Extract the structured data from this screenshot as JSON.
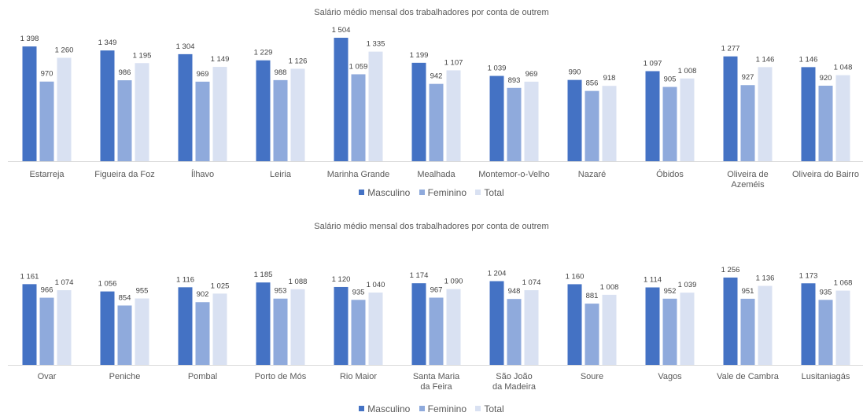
{
  "chart_data": [
    {
      "type": "bar",
      "title": "Salário médio mensal dos trabalhadores por conta de outrem",
      "categories": [
        "Estarreja",
        "Figueira da Foz",
        "Ílhavo",
        "Leiria",
        "Marinha Grande",
        "Mealhada",
        "Montemor-o-Velho",
        "Nazaré",
        "Óbidos",
        "Oliveira de Azeméis",
        "Oliveira do Bairro"
      ],
      "series": [
        {
          "name": "Masculino",
          "color": "#4472C4",
          "values": [
            1398,
            1349,
            1304,
            1229,
            1504,
            1199,
            1039,
            990,
            1097,
            1277,
            1146
          ],
          "labels": [
            "1 398",
            "1 349",
            "1 304",
            "1 229",
            "1 504",
            "1 199",
            "1 039",
            "990",
            "1 097",
            "1 277",
            "1 146"
          ]
        },
        {
          "name": "Feminino",
          "color": "#8FAADC",
          "values": [
            970,
            986,
            969,
            988,
            1059,
            942,
            893,
            856,
            905,
            927,
            920
          ],
          "labels": [
            "970",
            "986",
            "969",
            "988",
            "1 059",
            "942",
            "893",
            "856",
            "905",
            "927",
            "920"
          ]
        },
        {
          "name": "Total",
          "color": "#D9E1F2",
          "values": [
            1260,
            1195,
            1149,
            1126,
            1335,
            1107,
            969,
            918,
            1008,
            1146,
            1048
          ],
          "labels": [
            "1 260",
            "1 195",
            "1 149",
            "1 126",
            "1 335",
            "1 107",
            "969",
            "918",
            "1 008",
            "1 146",
            "1 048"
          ]
        }
      ],
      "legend": "bottom",
      "grid": false
    },
    {
      "type": "bar",
      "title": "Salário médio mensal dos trabalhadores por conta de outrem",
      "categories": [
        "Ovar",
        "Peniche",
        "Pombal",
        "Porto de Mós",
        "Rio Maior",
        "Santa Maria da Feira",
        "São João da Madeira",
        "Soure",
        "Vagos",
        "Vale de Cambra",
        "Lusitaniagás"
      ],
      "series": [
        {
          "name": "Masculino",
          "color": "#4472C4",
          "values": [
            1161,
            1056,
            1116,
            1185,
            1120,
            1174,
            1204,
            1160,
            1114,
            1256,
            1173
          ],
          "labels": [
            "1 161",
            "1 056",
            "1 116",
            "1 185",
            "1 120",
            "1 174",
            "1 204",
            "1 160",
            "1 114",
            "1 256",
            "1 173"
          ]
        },
        {
          "name": "Feminino",
          "color": "#8FAADC",
          "values": [
            966,
            854,
            902,
            953,
            935,
            967,
            948,
            881,
            952,
            951,
            935
          ],
          "labels": [
            "966",
            "854",
            "902",
            "953",
            "935",
            "967",
            "948",
            "881",
            "952",
            "951",
            "935"
          ]
        },
        {
          "name": "Total",
          "color": "#D9E1F2",
          "values": [
            1074,
            955,
            1025,
            1088,
            1040,
            1090,
            1074,
            1008,
            1039,
            1136,
            1068
          ],
          "labels": [
            "1 074",
            "955",
            "1 025",
            "1 088",
            "1 040",
            "1 090",
            "1 074",
            "1 008",
            "1 039",
            "1 136",
            "1 068"
          ]
        }
      ],
      "legend": "bottom",
      "grid": false
    }
  ]
}
